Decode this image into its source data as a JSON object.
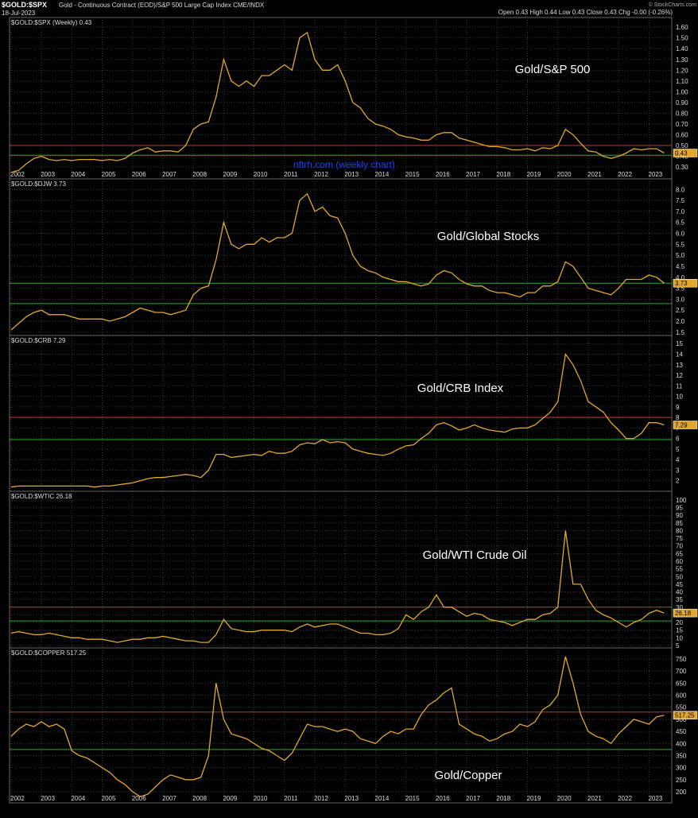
{
  "header": {
    "symbol": "$GOLD:$SPX",
    "description": "Gold - Continuous Contract (EOD)/S&P 500 Large Cap Index CME/INDX",
    "date": "18-Jul-2023",
    "quote": "Open 0.43  High 0.44  Low 0.43  Close 0.43  Chg -0.00 (-0.26%)",
    "credit": "© StockCharts.com"
  },
  "chart_data": [
    {
      "type": "line",
      "panel_label": "$GOLD:$SPX (Weekly) 0.43",
      "annotations": [
        "Gold/S&P 500",
        "nftrh.com (weekly chart)"
      ],
      "last_value_label": "0.43",
      "color": "#e3a82b",
      "xtick_labels": true,
      "xlim": [
        2001.95,
        2023.75
      ],
      "xticks": [
        2002,
        2003,
        2004,
        2005,
        2006,
        2007,
        2008,
        2009,
        2010,
        2011,
        2012,
        2013,
        2014,
        2015,
        2016,
        2017,
        2018,
        2019,
        2020,
        2021,
        2022,
        2023
      ],
      "ylim": [
        0.19,
        1.69
      ],
      "yticks": [
        {
          "value": 0.3,
          "label": "0.30"
        },
        {
          "value": 0.4,
          "label": "0.40"
        },
        {
          "value": 0.5,
          "label": "0.50"
        },
        {
          "value": 0.6,
          "label": "0.60"
        },
        {
          "value": 0.7,
          "label": "0.70"
        },
        {
          "value": 0.8,
          "label": "0.80"
        },
        {
          "value": 0.9,
          "label": "0.90"
        },
        {
          "value": 1.0,
          "label": "1.00"
        },
        {
          "value": 1.1,
          "label": "1.10"
        },
        {
          "value": 1.2,
          "label": "1.20"
        },
        {
          "value": 1.3,
          "label": "1.30"
        },
        {
          "value": 1.4,
          "label": "1.40"
        },
        {
          "value": 1.5,
          "label": "1.50"
        },
        {
          "value": 1.6,
          "label": "1.60"
        }
      ],
      "hlines": [
        {
          "value": 0.5,
          "color": "#c0392b"
        },
        {
          "value": 0.41,
          "color": "#2fa82f"
        }
      ],
      "x": [
        2002,
        2002.25,
        2002.5,
        2002.75,
        2003,
        2003.25,
        2003.5,
        2003.75,
        2004,
        2004.25,
        2004.5,
        2004.75,
        2005,
        2005.25,
        2005.5,
        2005.75,
        2006,
        2006.25,
        2006.5,
        2006.75,
        2007,
        2007.25,
        2007.5,
        2007.75,
        2008,
        2008.25,
        2008.5,
        2008.75,
        2009,
        2009.25,
        2009.5,
        2009.75,
        2010,
        2010.25,
        2010.5,
        2010.75,
        2011,
        2011.25,
        2011.5,
        2011.75,
        2012,
        2012.25,
        2012.5,
        2012.75,
        2013,
        2013.25,
        2013.5,
        2013.75,
        2014,
        2014.25,
        2014.5,
        2014.75,
        2015,
        2015.25,
        2015.5,
        2015.75,
        2016,
        2016.25,
        2016.5,
        2016.75,
        2017,
        2017.25,
        2017.5,
        2017.75,
        2018,
        2018.25,
        2018.5,
        2018.75,
        2019,
        2019.25,
        2019.5,
        2019.75,
        2020,
        2020.25,
        2020.5,
        2020.75,
        2021,
        2021.25,
        2021.5,
        2021.75,
        2022,
        2022.25,
        2022.5,
        2022.75,
        2023,
        2023.25,
        2023.5
      ],
      "values": [
        0.25,
        0.27,
        0.33,
        0.38,
        0.4,
        0.37,
        0.36,
        0.37,
        0.36,
        0.37,
        0.37,
        0.37,
        0.36,
        0.37,
        0.36,
        0.38,
        0.43,
        0.46,
        0.48,
        0.44,
        0.45,
        0.45,
        0.44,
        0.5,
        0.65,
        0.7,
        0.72,
        0.95,
        1.3,
        1.1,
        1.05,
        1.1,
        1.05,
        1.15,
        1.15,
        1.2,
        1.25,
        1.2,
        1.5,
        1.55,
        1.3,
        1.2,
        1.2,
        1.25,
        1.1,
        0.9,
        0.85,
        0.75,
        0.7,
        0.68,
        0.65,
        0.6,
        0.58,
        0.57,
        0.55,
        0.55,
        0.6,
        0.62,
        0.62,
        0.57,
        0.55,
        0.53,
        0.51,
        0.49,
        0.49,
        0.48,
        0.46,
        0.46,
        0.47,
        0.45,
        0.48,
        0.47,
        0.5,
        0.65,
        0.6,
        0.52,
        0.45,
        0.44,
        0.4,
        0.38,
        0.4,
        0.43,
        0.47,
        0.46,
        0.47,
        0.47,
        0.43
      ]
    },
    {
      "type": "line",
      "panel_label": "$GOLD:$DJW 3.73",
      "annotations": [
        "Gold/Global Stocks"
      ],
      "last_value_label": "3.73",
      "color": "#e3a82b",
      "xtick_labels": false,
      "xlim": [
        2001.95,
        2023.75
      ],
      "xticks": [
        2002,
        2003,
        2004,
        2005,
        2006,
        2007,
        2008,
        2009,
        2010,
        2011,
        2012,
        2013,
        2014,
        2015,
        2016,
        2017,
        2018,
        2019,
        2020,
        2021,
        2022,
        2023
      ],
      "ylim": [
        1.35,
        8.48
      ],
      "yticks": [
        1.5,
        {
          "value": 2,
          "label": "2.0"
        },
        2.5,
        {
          "value": 3,
          "label": "3.0"
        },
        3.5,
        {
          "value": 4,
          "label": "4.0"
        },
        4.5,
        {
          "value": 5,
          "label": "5.0"
        },
        5.5,
        {
          "value": 6,
          "label": "6.0"
        },
        6.5,
        {
          "value": 7,
          "label": "7.0"
        },
        7.5,
        {
          "value": 8,
          "label": "8.0"
        }
      ],
      "hlines": [
        {
          "value": 3.73,
          "color": "#2fa82f"
        },
        {
          "value": 2.8,
          "color": "#2fa82f"
        }
      ],
      "x": [
        2002,
        2002.25,
        2002.5,
        2002.75,
        2003,
        2003.25,
        2003.5,
        2003.75,
        2004,
        2004.25,
        2004.5,
        2004.75,
        2005,
        2005.25,
        2005.5,
        2005.75,
        2006,
        2006.25,
        2006.5,
        2006.75,
        2007,
        2007.25,
        2007.5,
        2007.75,
        2008,
        2008.25,
        2008.5,
        2008.75,
        2009,
        2009.25,
        2009.5,
        2009.75,
        2010,
        2010.25,
        2010.5,
        2010.75,
        2011,
        2011.25,
        2011.5,
        2011.75,
        2012,
        2012.25,
        2012.5,
        2012.75,
        2013,
        2013.25,
        2013.5,
        2013.75,
        2014,
        2014.25,
        2014.5,
        2014.75,
        2015,
        2015.25,
        2015.5,
        2015.75,
        2016,
        2016.25,
        2016.5,
        2016.75,
        2017,
        2017.25,
        2017.5,
        2017.75,
        2018,
        2018.25,
        2018.5,
        2018.75,
        2019,
        2019.25,
        2019.5,
        2019.75,
        2020,
        2020.25,
        2020.5,
        2020.75,
        2021,
        2021.25,
        2021.5,
        2021.75,
        2022,
        2022.25,
        2022.5,
        2022.75,
        2023,
        2023.25,
        2023.5
      ],
      "values": [
        1.6,
        1.9,
        2.2,
        2.4,
        2.5,
        2.3,
        2.3,
        2.3,
        2.2,
        2.1,
        2.1,
        2.1,
        2.1,
        2.0,
        2.1,
        2.2,
        2.4,
        2.6,
        2.5,
        2.4,
        2.4,
        2.3,
        2.4,
        2.5,
        3.2,
        3.5,
        3.6,
        4.8,
        6.5,
        5.5,
        5.3,
        5.5,
        5.5,
        5.8,
        5.6,
        5.8,
        5.8,
        6.0,
        7.5,
        7.8,
        7.0,
        7.2,
        6.8,
        6.7,
        6.0,
        5.0,
        4.5,
        4.3,
        4.2,
        4.0,
        3.9,
        3.8,
        3.8,
        3.7,
        3.6,
        3.7,
        4.1,
        4.3,
        4.2,
        3.9,
        3.7,
        3.6,
        3.6,
        3.4,
        3.3,
        3.3,
        3.2,
        3.1,
        3.3,
        3.3,
        3.6,
        3.6,
        3.8,
        4.7,
        4.5,
        4.0,
        3.5,
        3.4,
        3.3,
        3.2,
        3.5,
        3.9,
        3.9,
        3.9,
        4.1,
        4.0,
        3.73
      ]
    },
    {
      "type": "line",
      "panel_label": "$GOLD:$CRB 7.29",
      "annotations": [
        "Gold/CRB Index"
      ],
      "last_value_label": "7.29",
      "color": "#e3a82b",
      "xtick_labels": false,
      "xlim": [
        2001.95,
        2023.75
      ],
      "xticks": [
        2002,
        2003,
        2004,
        2005,
        2006,
        2007,
        2008,
        2009,
        2010,
        2011,
        2012,
        2013,
        2014,
        2015,
        2016,
        2017,
        2018,
        2019,
        2020,
        2021,
        2022,
        2023
      ],
      "ylim": [
        1.0,
        15.77
      ],
      "yticks": [
        2,
        3,
        4,
        5,
        6,
        7,
        8,
        9,
        10,
        11,
        12,
        13,
        14,
        15
      ],
      "hlines": [
        {
          "value": 8.0,
          "color": "#c0392b"
        },
        {
          "value": 5.9,
          "color": "#2fa82f"
        }
      ],
      "x": [
        2002,
        2002.25,
        2002.5,
        2002.75,
        2003,
        2003.25,
        2003.5,
        2003.75,
        2004,
        2004.25,
        2004.5,
        2004.75,
        2005,
        2005.25,
        2005.5,
        2005.75,
        2006,
        2006.25,
        2006.5,
        2006.75,
        2007,
        2007.25,
        2007.5,
        2007.75,
        2008,
        2008.25,
        2008.5,
        2008.75,
        2009,
        2009.25,
        2009.5,
        2009.75,
        2010,
        2010.25,
        2010.5,
        2010.75,
        2011,
        2011.25,
        2011.5,
        2011.75,
        2012,
        2012.25,
        2012.5,
        2012.75,
        2013,
        2013.25,
        2013.5,
        2013.75,
        2014,
        2014.25,
        2014.5,
        2014.75,
        2015,
        2015.25,
        2015.5,
        2015.75,
        2016,
        2016.25,
        2016.5,
        2016.75,
        2017,
        2017.25,
        2017.5,
        2017.75,
        2018,
        2018.25,
        2018.5,
        2018.75,
        2019,
        2019.25,
        2019.5,
        2019.75,
        2020,
        2020.25,
        2020.5,
        2020.75,
        2021,
        2021.25,
        2021.5,
        2021.75,
        2022,
        2022.25,
        2022.5,
        2022.75,
        2023,
        2023.25,
        2023.5
      ],
      "values": [
        1.4,
        1.5,
        1.5,
        1.5,
        1.5,
        1.5,
        1.5,
        1.5,
        1.5,
        1.5,
        1.5,
        1.4,
        1.5,
        1.5,
        1.6,
        1.7,
        1.8,
        2.0,
        2.2,
        2.3,
        2.3,
        2.4,
        2.5,
        2.6,
        2.5,
        2.3,
        3.0,
        4.5,
        4.5,
        4.2,
        4.3,
        4.4,
        4.5,
        4.4,
        4.8,
        4.6,
        4.6,
        4.8,
        5.4,
        5.6,
        5.5,
        5.9,
        5.6,
        5.7,
        5.6,
        5.0,
        4.8,
        4.6,
        4.5,
        4.4,
        4.6,
        5.0,
        5.3,
        5.4,
        6.0,
        6.5,
        7.3,
        7.5,
        7.2,
        6.8,
        7.0,
        7.3,
        7.0,
        6.8,
        6.7,
        6.6,
        6.9,
        7.0,
        7.0,
        7.3,
        7.9,
        8.5,
        9.5,
        14.0,
        13.0,
        11.5,
        9.5,
        9.0,
        8.5,
        7.5,
        6.8,
        6.0,
        6.0,
        6.5,
        7.5,
        7.5,
        7.29
      ]
    },
    {
      "type": "line",
      "panel_label": "$GOLD:$WTIC 26.18",
      "annotations": [
        "Gold/WTI Crude Oil"
      ],
      "last_value_label": "26.18",
      "color": "#e3a82b",
      "xtick_labels": false,
      "xlim": [
        2001.95,
        2023.75
      ],
      "xticks": [
        2002,
        2003,
        2004,
        2005,
        2006,
        2007,
        2008,
        2009,
        2010,
        2011,
        2012,
        2013,
        2014,
        2015,
        2016,
        2017,
        2018,
        2019,
        2020,
        2021,
        2022,
        2023
      ],
      "ylim": [
        3.4,
        105.7
      ],
      "yticks": [
        5,
        10,
        15,
        20,
        25,
        30,
        35,
        40,
        45,
        50,
        55,
        60,
        65,
        70,
        75,
        80,
        85,
        90,
        95,
        100
      ],
      "hlines": [
        {
          "value": 30,
          "color": "#c0392b"
        },
        {
          "value": 21,
          "color": "#2fa82f"
        }
      ],
      "x": [
        2002,
        2002.25,
        2002.5,
        2002.75,
        2003,
        2003.25,
        2003.5,
        2003.75,
        2004,
        2004.25,
        2004.5,
        2004.75,
        2005,
        2005.25,
        2005.5,
        2005.75,
        2006,
        2006.25,
        2006.5,
        2006.75,
        2007,
        2007.25,
        2007.5,
        2007.75,
        2008,
        2008.25,
        2008.5,
        2008.75,
        2009,
        2009.25,
        2009.5,
        2009.75,
        2010,
        2010.25,
        2010.5,
        2010.75,
        2011,
        2011.25,
        2011.5,
        2011.75,
        2012,
        2012.25,
        2012.5,
        2012.75,
        2013,
        2013.25,
        2013.5,
        2013.75,
        2014,
        2014.25,
        2014.5,
        2014.75,
        2015,
        2015.25,
        2015.5,
        2015.75,
        2016,
        2016.25,
        2016.5,
        2016.75,
        2017,
        2017.25,
        2017.5,
        2017.75,
        2018,
        2018.25,
        2018.5,
        2018.75,
        2019,
        2019.25,
        2019.5,
        2019.75,
        2020,
        2020.25,
        2020.5,
        2020.75,
        2021,
        2021.25,
        2021.5,
        2021.75,
        2022,
        2022.25,
        2022.5,
        2022.75,
        2023,
        2023.25,
        2023.5
      ],
      "values": [
        13,
        14,
        13,
        12,
        12,
        13,
        12,
        11,
        10,
        10,
        9,
        9,
        9,
        8,
        7,
        8,
        9,
        9,
        10,
        10,
        11,
        10,
        9,
        8,
        8,
        7,
        7,
        12,
        22,
        16,
        15,
        14,
        14,
        15,
        15,
        15,
        15,
        14,
        17,
        19,
        17,
        18,
        19,
        19,
        17,
        15,
        13,
        13,
        12,
        12,
        13,
        16,
        25,
        22,
        27,
        30,
        38,
        30,
        30,
        27,
        24,
        26,
        25,
        22,
        21,
        20,
        18,
        20,
        22,
        22,
        25,
        26,
        30,
        80,
        45,
        45,
        35,
        28,
        25,
        23,
        20,
        17,
        20,
        22,
        26,
        28,
        26.18
      ]
    },
    {
      "type": "line",
      "panel_label": "$GOLD:$COPPER 517.25",
      "annotations": [
        "Gold/Copper"
      ],
      "last_value_label": "517.25",
      "color": "#e3a82b",
      "xtick_labels": true,
      "xlim": [
        2001.95,
        2023.75
      ],
      "xticks": [
        2002,
        2003,
        2004,
        2005,
        2006,
        2007,
        2008,
        2009,
        2010,
        2011,
        2012,
        2013,
        2014,
        2015,
        2016,
        2017,
        2018,
        2019,
        2020,
        2021,
        2022,
        2023
      ],
      "ylim": [
        154,
        796
      ],
      "yticks": [
        200,
        250,
        300,
        350,
        400,
        450,
        500,
        550,
        600,
        650,
        700,
        750
      ],
      "hlines": [
        {
          "value": 530,
          "color": "#c0392b"
        },
        {
          "value": 375,
          "color": "#2fa82f"
        }
      ],
      "x": [
        2002,
        2002.25,
        2002.5,
        2002.75,
        2003,
        2003.25,
        2003.5,
        2003.75,
        2004,
        2004.25,
        2004.5,
        2004.75,
        2005,
        2005.25,
        2005.5,
        2005.75,
        2006,
        2006.25,
        2006.5,
        2006.75,
        2007,
        2007.25,
        2007.5,
        2007.75,
        2008,
        2008.25,
        2008.5,
        2008.75,
        2009,
        2009.25,
        2009.5,
        2009.75,
        2010,
        2010.25,
        2010.5,
        2010.75,
        2011,
        2011.25,
        2011.5,
        2011.75,
        2012,
        2012.25,
        2012.5,
        2012.75,
        2013,
        2013.25,
        2013.5,
        2013.75,
        2014,
        2014.25,
        2014.5,
        2014.75,
        2015,
        2015.25,
        2015.5,
        2015.75,
        2016,
        2016.25,
        2016.5,
        2016.75,
        2017,
        2017.25,
        2017.5,
        2017.75,
        2018,
        2018.25,
        2018.5,
        2018.75,
        2019,
        2019.25,
        2019.5,
        2019.75,
        2020,
        2020.25,
        2020.5,
        2020.75,
        2021,
        2021.25,
        2021.5,
        2021.75,
        2022,
        2022.25,
        2022.5,
        2022.75,
        2023,
        2023.25,
        2023.5
      ],
      "values": [
        430,
        460,
        480,
        470,
        490,
        470,
        480,
        460,
        370,
        350,
        340,
        320,
        300,
        280,
        250,
        230,
        200,
        180,
        190,
        220,
        250,
        270,
        260,
        250,
        250,
        260,
        350,
        650,
        500,
        440,
        430,
        420,
        400,
        380,
        370,
        350,
        330,
        360,
        420,
        480,
        470,
        470,
        460,
        450,
        460,
        450,
        420,
        410,
        400,
        430,
        450,
        440,
        460,
        460,
        520,
        560,
        580,
        610,
        630,
        480,
        460,
        440,
        430,
        410,
        420,
        440,
        450,
        480,
        470,
        490,
        540,
        560,
        600,
        760,
        650,
        520,
        450,
        430,
        420,
        400,
        440,
        470,
        500,
        490,
        480,
        510,
        517.25
      ]
    }
  ]
}
